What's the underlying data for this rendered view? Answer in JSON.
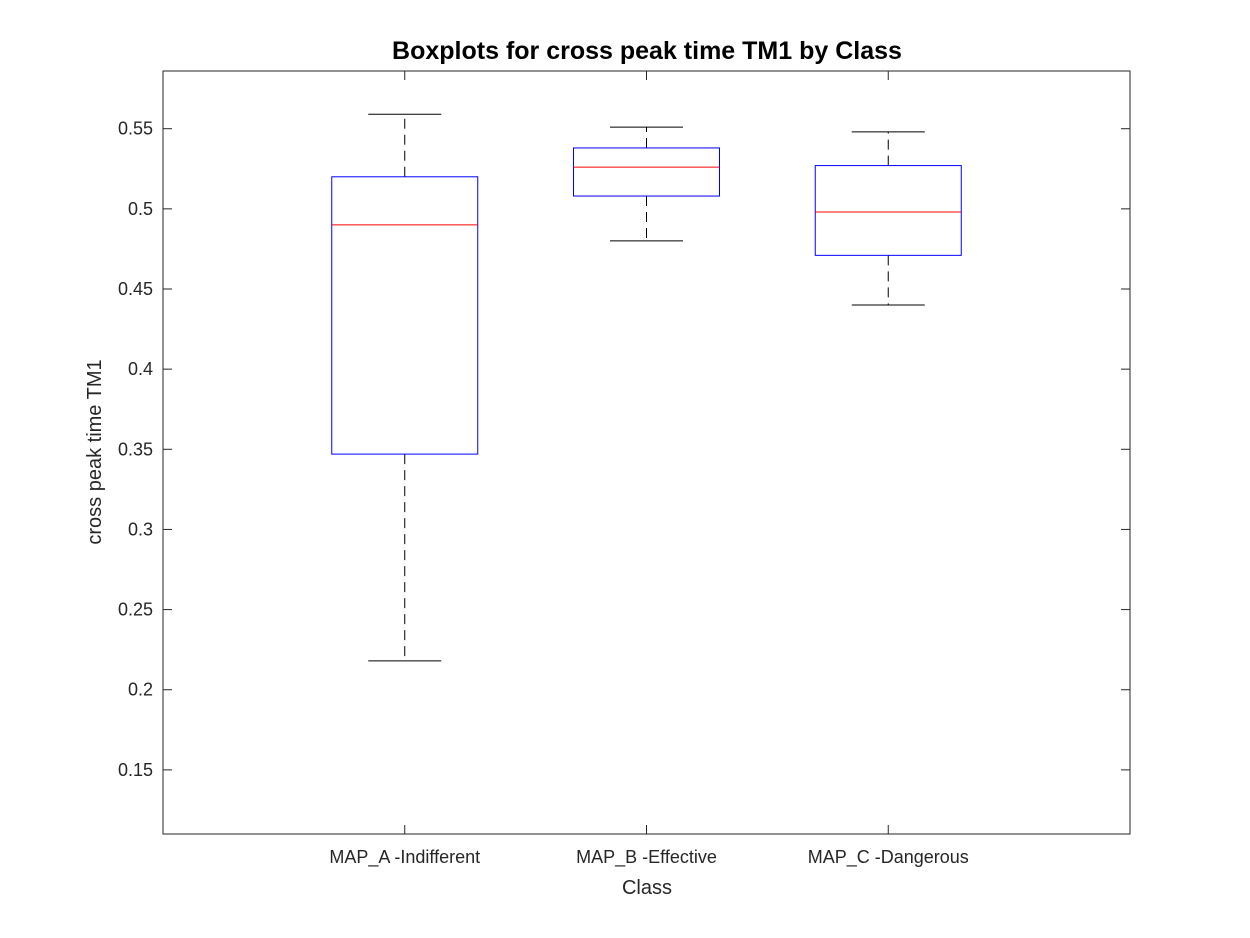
{
  "chart_data": {
    "type": "box",
    "title": "Boxplots for cross peak time TM1 by Class",
    "xlabel": "Class",
    "ylabel": "cross peak time TM1",
    "ylim": [
      0.11,
      0.586
    ],
    "yticks": [
      0.15,
      0.2,
      0.25,
      0.3,
      0.35,
      0.4,
      0.45,
      0.5,
      0.55
    ],
    "ytick_labels": [
      "0.15",
      "0.2",
      "0.25",
      "0.3",
      "0.35",
      "0.4",
      "0.45",
      "0.5",
      "0.55"
    ],
    "categories": [
      "MAP_A -Indifferent",
      "MAP_B -Effective",
      "MAP_C -Dangerous"
    ],
    "boxes": [
      {
        "category": "MAP_A -Indifferent",
        "whisker_low": 0.218,
        "q1": 0.347,
        "median": 0.49,
        "q3": 0.52,
        "whisker_high": 0.559
      },
      {
        "category": "MAP_B -Effective",
        "whisker_low": 0.48,
        "q1": 0.508,
        "median": 0.526,
        "q3": 0.538,
        "whisker_high": 0.551
      },
      {
        "category": "MAP_C -Dangerous",
        "whisker_low": 0.44,
        "q1": 0.471,
        "median": 0.498,
        "q3": 0.527,
        "whisker_high": 0.548
      }
    ],
    "grid": false,
    "colors": {
      "box": "#0000ff",
      "median": "#ff0000",
      "whisker": "#000000",
      "axes": "#262626"
    }
  }
}
